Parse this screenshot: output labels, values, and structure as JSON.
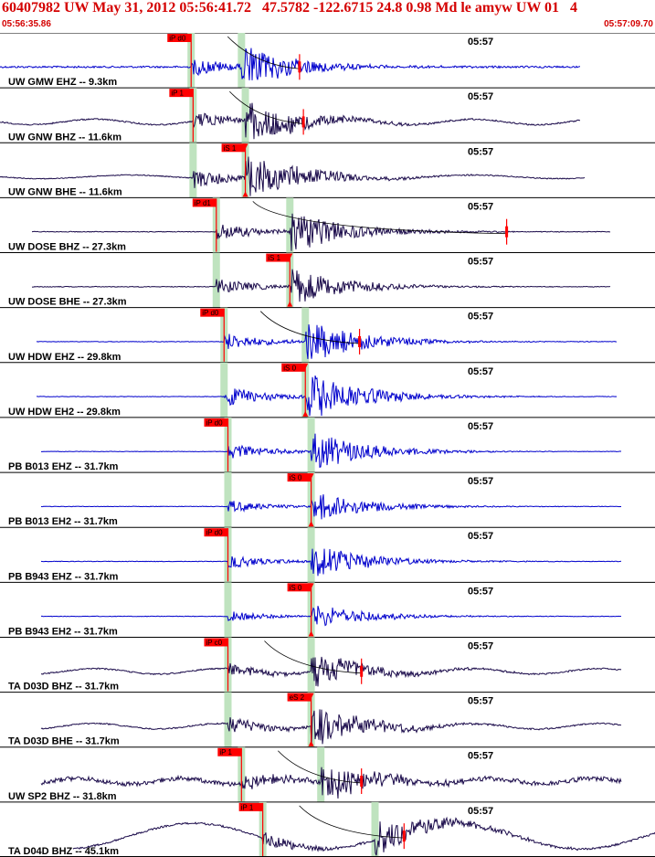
{
  "header": {
    "title": "60407982 UW May 31, 2012 05:56:41.72   47.5782 -122.6715 24.8 0.98 Md le amyw UW 01   4",
    "start_time": "05:56:35.86",
    "end_time": "05:57:09.70"
  },
  "colors": {
    "title": "#d40000",
    "trace_velocity": "#0000cc",
    "trace_broadband": "#1a0a4a",
    "pick": "#ff0000",
    "window": "#bfe3bf",
    "panel_border": "#000000"
  },
  "chart_data": {
    "type": "seismogram",
    "time_window": {
      "start": "05:56:35.86",
      "end": "05:57:09.70"
    },
    "minute_mark": "05:57",
    "traces": [
      {
        "label": "UW GMW EHZ -- 9.3km",
        "pick_label": "iP d0",
        "pick_color_trace": "blue",
        "p_time": 0.2,
        "s_time": 2.8,
        "coda": 5.8
      },
      {
        "label": "UW GNW BHZ -- 11.6km",
        "pick_label": "iP 1",
        "pick_color_trace": "dark",
        "p_time": 0.3,
        "s_time": 3.0,
        "coda": 6.0
      },
      {
        "label": "UW GNW BHE -- 11.6km",
        "pick_label": "iS 1",
        "pick_color_trace": "dark",
        "p_time": 0.3,
        "s_time": 3.0,
        "coda": null
      },
      {
        "label": "UW DOSE BHZ -- 27.3km",
        "pick_label": "iP d1",
        "pick_color_trace": "dark",
        "p_time": 1.5,
        "s_time": 5.3,
        "coda": 16.5
      },
      {
        "label": "UW DOSE BHE -- 27.3km",
        "pick_label": "iS 1",
        "pick_color_trace": "dark",
        "p_time": 1.5,
        "s_time": 5.3,
        "coda": null
      },
      {
        "label": "UW HDW EHZ -- 29.8km",
        "pick_label": "iP d0",
        "pick_color_trace": "blue",
        "p_time": 1.9,
        "s_time": 6.1,
        "coda": 8.9
      },
      {
        "label": "UW HDW EH2 -- 29.8km",
        "pick_label": "iS 0",
        "pick_color_trace": "blue",
        "p_time": 1.9,
        "s_time": 6.1,
        "coda": null
      },
      {
        "label": "PB B013 EHZ -- 31.7km",
        "pick_label": "iP d0",
        "pick_color_trace": "blue",
        "p_time": 2.1,
        "s_time": 6.4,
        "coda": null
      },
      {
        "label": "PB B013 EH2 -- 31.7km",
        "pick_label": "iS 0",
        "pick_color_trace": "blue",
        "p_time": 2.1,
        "s_time": 6.4,
        "coda": null
      },
      {
        "label": "PB B943 EHZ -- 31.7km",
        "pick_label": "iP d0",
        "pick_color_trace": "blue",
        "p_time": 2.1,
        "s_time": 6.4,
        "coda": null
      },
      {
        "label": "PB B943 EH2 -- 31.7km",
        "pick_label": "iS 0",
        "pick_color_trace": "blue",
        "p_time": 2.1,
        "s_time": 6.4,
        "coda": null
      },
      {
        "label": "TA D03D BHZ -- 31.7km",
        "pick_label": "iP c0",
        "pick_color_trace": "dark",
        "p_time": 2.1,
        "s_time": 6.4,
        "coda": 9.0
      },
      {
        "label": "TA D03D BHE -- 31.7km",
        "pick_label": "eS 2",
        "pick_color_trace": "dark",
        "p_time": 2.1,
        "s_time": 6.4,
        "coda": null
      },
      {
        "label": "UW SP2 BHZ -- 31.8km",
        "pick_label": "iP 1",
        "pick_color_trace": "dark",
        "p_time": 2.8,
        "s_time": 6.9,
        "coda": 9.0
      },
      {
        "label": "TA D04D BHZ -- 45.1km",
        "pick_label": "iP 1",
        "pick_color_trace": "dark",
        "p_time": 3.9,
        "s_time": 9.7,
        "coda": 11.2
      }
    ]
  }
}
